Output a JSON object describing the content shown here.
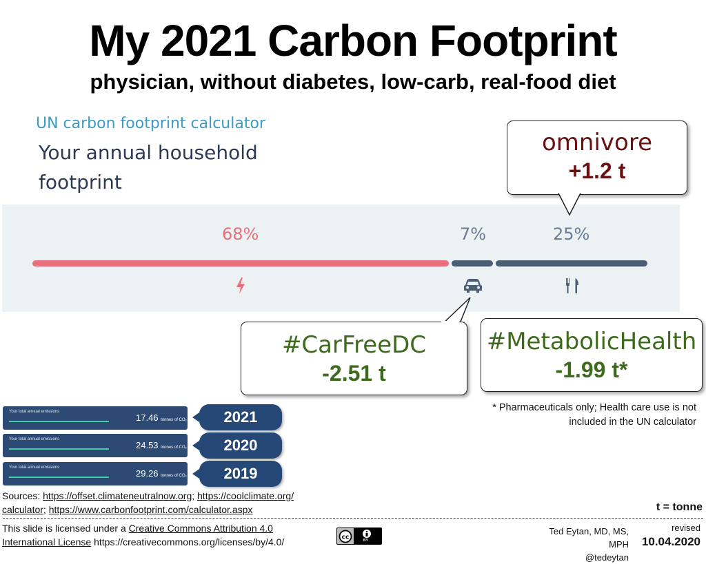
{
  "title": "My 2021 Carbon Footprint",
  "subtitle": "physician, without diabetes, low-carb, real-food diet",
  "calculator": {
    "label": "UN carbon footprint calculator",
    "heading": "Your annual household footprint"
  },
  "breakdown": [
    {
      "name": "energy",
      "percent": "68%",
      "icon": "lightning-icon",
      "color": "#e8707e"
    },
    {
      "name": "transport",
      "percent": "7%",
      "icon": "car-icon",
      "color": "#4b5d74"
    },
    {
      "name": "food",
      "percent": "25%",
      "icon": "fork-knife-icon",
      "color": "#4b5d74"
    }
  ],
  "callouts": {
    "omnivore": {
      "title": "omnivore",
      "value": "+1.2 t",
      "color": "#6b1010"
    },
    "carfree": {
      "title": "#CarFreeDC",
      "value": "-2.51 t",
      "color": "#3e6a1e"
    },
    "metabolic": {
      "title": "#MetabolicHealth",
      "value": "-1.99 t*",
      "color": "#3e6a1e"
    }
  },
  "footnote": "* Pharmaceuticals only; Health care use is not included in the UN calculator",
  "years": [
    {
      "year": "2021",
      "label": "Your total annual emissions",
      "value": "17.46",
      "unit": "tonnes of CO₂"
    },
    {
      "year": "2020",
      "label": "Your total annual emissions",
      "value": "24.53",
      "unit": "tonnes of CO₂"
    },
    {
      "year": "2019",
      "label": "Your total annual emissions",
      "value": "29.26",
      "unit": "tonnes of CO₂"
    }
  ],
  "sources": {
    "prefix": "Sources: ",
    "link1": "https://offset.climateneutralnow.org",
    "sep1": "; ",
    "link2a": "https://coolclimate.org/",
    "link2b": "calculator",
    "sep2": "; ",
    "link3": "https://www.carbonfootprint.com/calculator.aspx"
  },
  "unit_note": "t = tonne",
  "license": {
    "prefix": "This slide is licensed under a ",
    "link_line1": "Creative Commons Attribution 4.0",
    "link_line2": "International License",
    "url": " https://creativecommons.org/licenses/by/4.0/",
    "badge_text": "BY"
  },
  "author": {
    "name": "Ted Eytan, MD, MS, MPH",
    "handle": "@tedeytan"
  },
  "revision": {
    "label": "revised",
    "date": "10.04.2020"
  }
}
